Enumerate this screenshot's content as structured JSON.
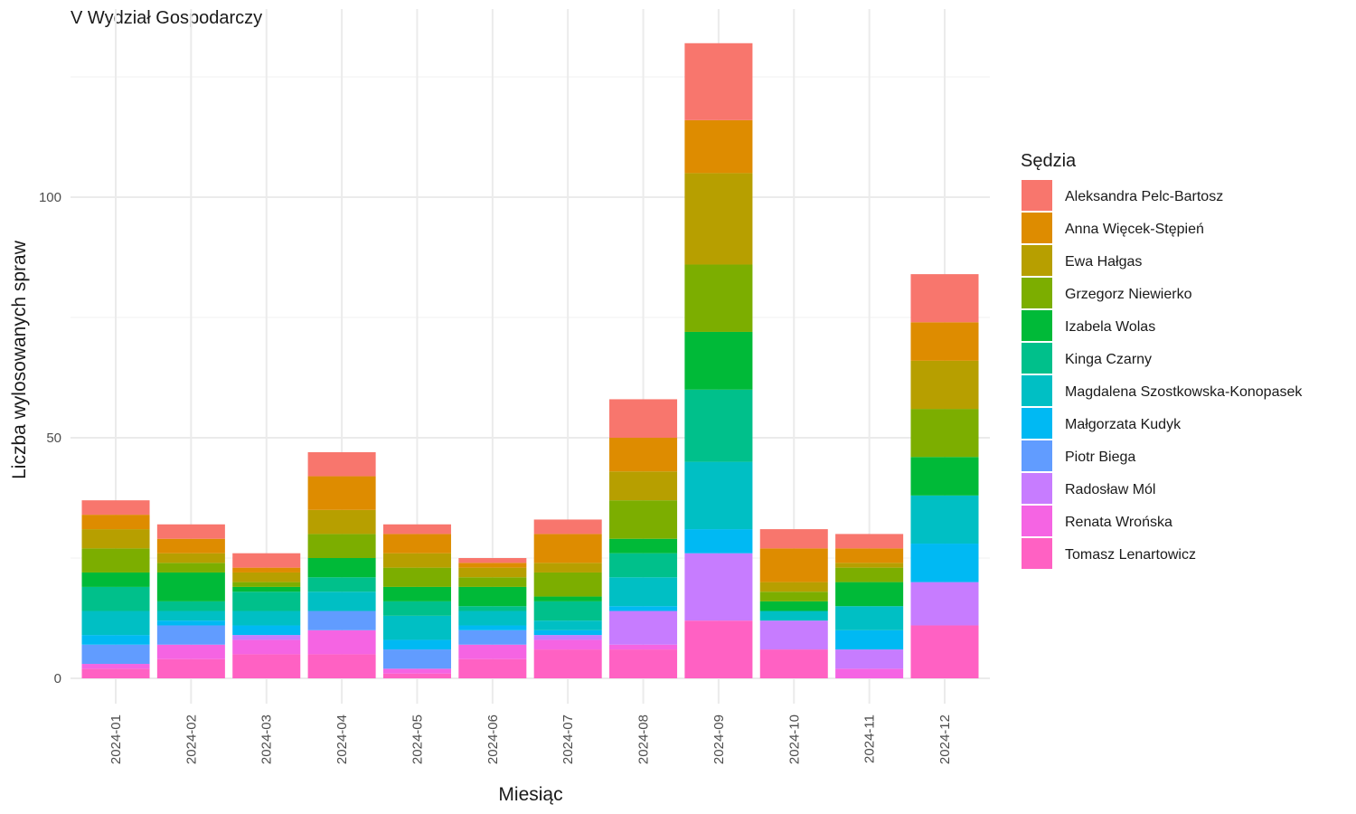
{
  "chart_data": {
    "type": "bar",
    "stacked": true,
    "title": "V Wydział Gospodarczy",
    "xlabel": "Miesiąc",
    "ylabel": "Liczba wylosowanych spraw",
    "legend_title": "Sędzia",
    "legend_position": "right",
    "grid": true,
    "ylim": [
      0,
      135
    ],
    "yticks": [
      0,
      50,
      100
    ],
    "ytick_labels": [
      "0",
      "50",
      "100"
    ],
    "categories": [
      "2024-01",
      "2024-02",
      "2024-03",
      "2024-04",
      "2024-05",
      "2024-06",
      "2024-07",
      "2024-08",
      "2024-09",
      "2024-10",
      "2024-11",
      "2024-12"
    ],
    "series": [
      {
        "name": "Tomasz Lenartowicz",
        "color": "#FF61C3",
        "values": [
          2,
          4,
          5,
          5,
          1,
          4,
          6,
          6,
          12,
          6,
          0,
          11
        ]
      },
      {
        "name": "Renata Wrońska",
        "color": "#F564E3",
        "values": [
          1,
          3,
          3,
          5,
          1,
          3,
          2,
          1,
          0,
          0,
          2,
          0
        ]
      },
      {
        "name": "Radosław Mól",
        "color": "#C77CFF",
        "values": [
          0,
          0,
          1,
          0,
          0,
          0,
          1,
          7,
          14,
          6,
          4,
          9
        ]
      },
      {
        "name": "Piotr Biega",
        "color": "#619CFF",
        "values": [
          4,
          4,
          0,
          4,
          4,
          3,
          0,
          0,
          0,
          0,
          0,
          0
        ]
      },
      {
        "name": "Małgorzata Kudyk",
        "color": "#00B9F3",
        "values": [
          2,
          1,
          2,
          0,
          2,
          1,
          1,
          1,
          5,
          0,
          4,
          8
        ]
      },
      {
        "name": "Magdalena Szostkowska-Konopasek",
        "color": "#00BFC4",
        "values": [
          5,
          2,
          3,
          4,
          5,
          3,
          2,
          6,
          14,
          2,
          5,
          10
        ]
      },
      {
        "name": "Kinga Czarny",
        "color": "#00C08B",
        "values": [
          5,
          2,
          4,
          3,
          3,
          1,
          4,
          5,
          15,
          0,
          0,
          0
        ]
      },
      {
        "name": "Izabela Wolas",
        "color": "#00BA38",
        "values": [
          3,
          6,
          1,
          4,
          3,
          4,
          1,
          3,
          12,
          2,
          5,
          8
        ]
      },
      {
        "name": "Grzegorz Niewierko",
        "color": "#7CAE00",
        "values": [
          5,
          2,
          1,
          5,
          4,
          2,
          5,
          8,
          14,
          2,
          3,
          10
        ]
      },
      {
        "name": "Ewa Hałgas",
        "color": "#B79F00",
        "values": [
          4,
          2,
          2,
          5,
          3,
          2,
          2,
          6,
          19,
          2,
          1,
          10
        ]
      },
      {
        "name": "Anna Więcek-Stępień",
        "color": "#DE8C00",
        "values": [
          3,
          3,
          1,
          7,
          4,
          1,
          6,
          7,
          11,
          7,
          3,
          8
        ]
      },
      {
        "name": "Aleksandra Pelc-Bartosz",
        "color": "#F8766D",
        "values": [
          3,
          3,
          3,
          5,
          2,
          1,
          3,
          8,
          16,
          4,
          3,
          10
        ]
      }
    ],
    "legend_order": [
      "Aleksandra Pelc-Bartosz",
      "Anna Więcek-Stępień",
      "Ewa Hałgas",
      "Grzegorz Niewierko",
      "Izabela Wolas",
      "Kinga Czarny",
      "Magdalena Szostkowska-Konopasek",
      "Małgorzata Kudyk",
      "Piotr Biega",
      "Radosław Mól",
      "Renata Wrońska",
      "Tomasz Lenartowicz"
    ]
  }
}
